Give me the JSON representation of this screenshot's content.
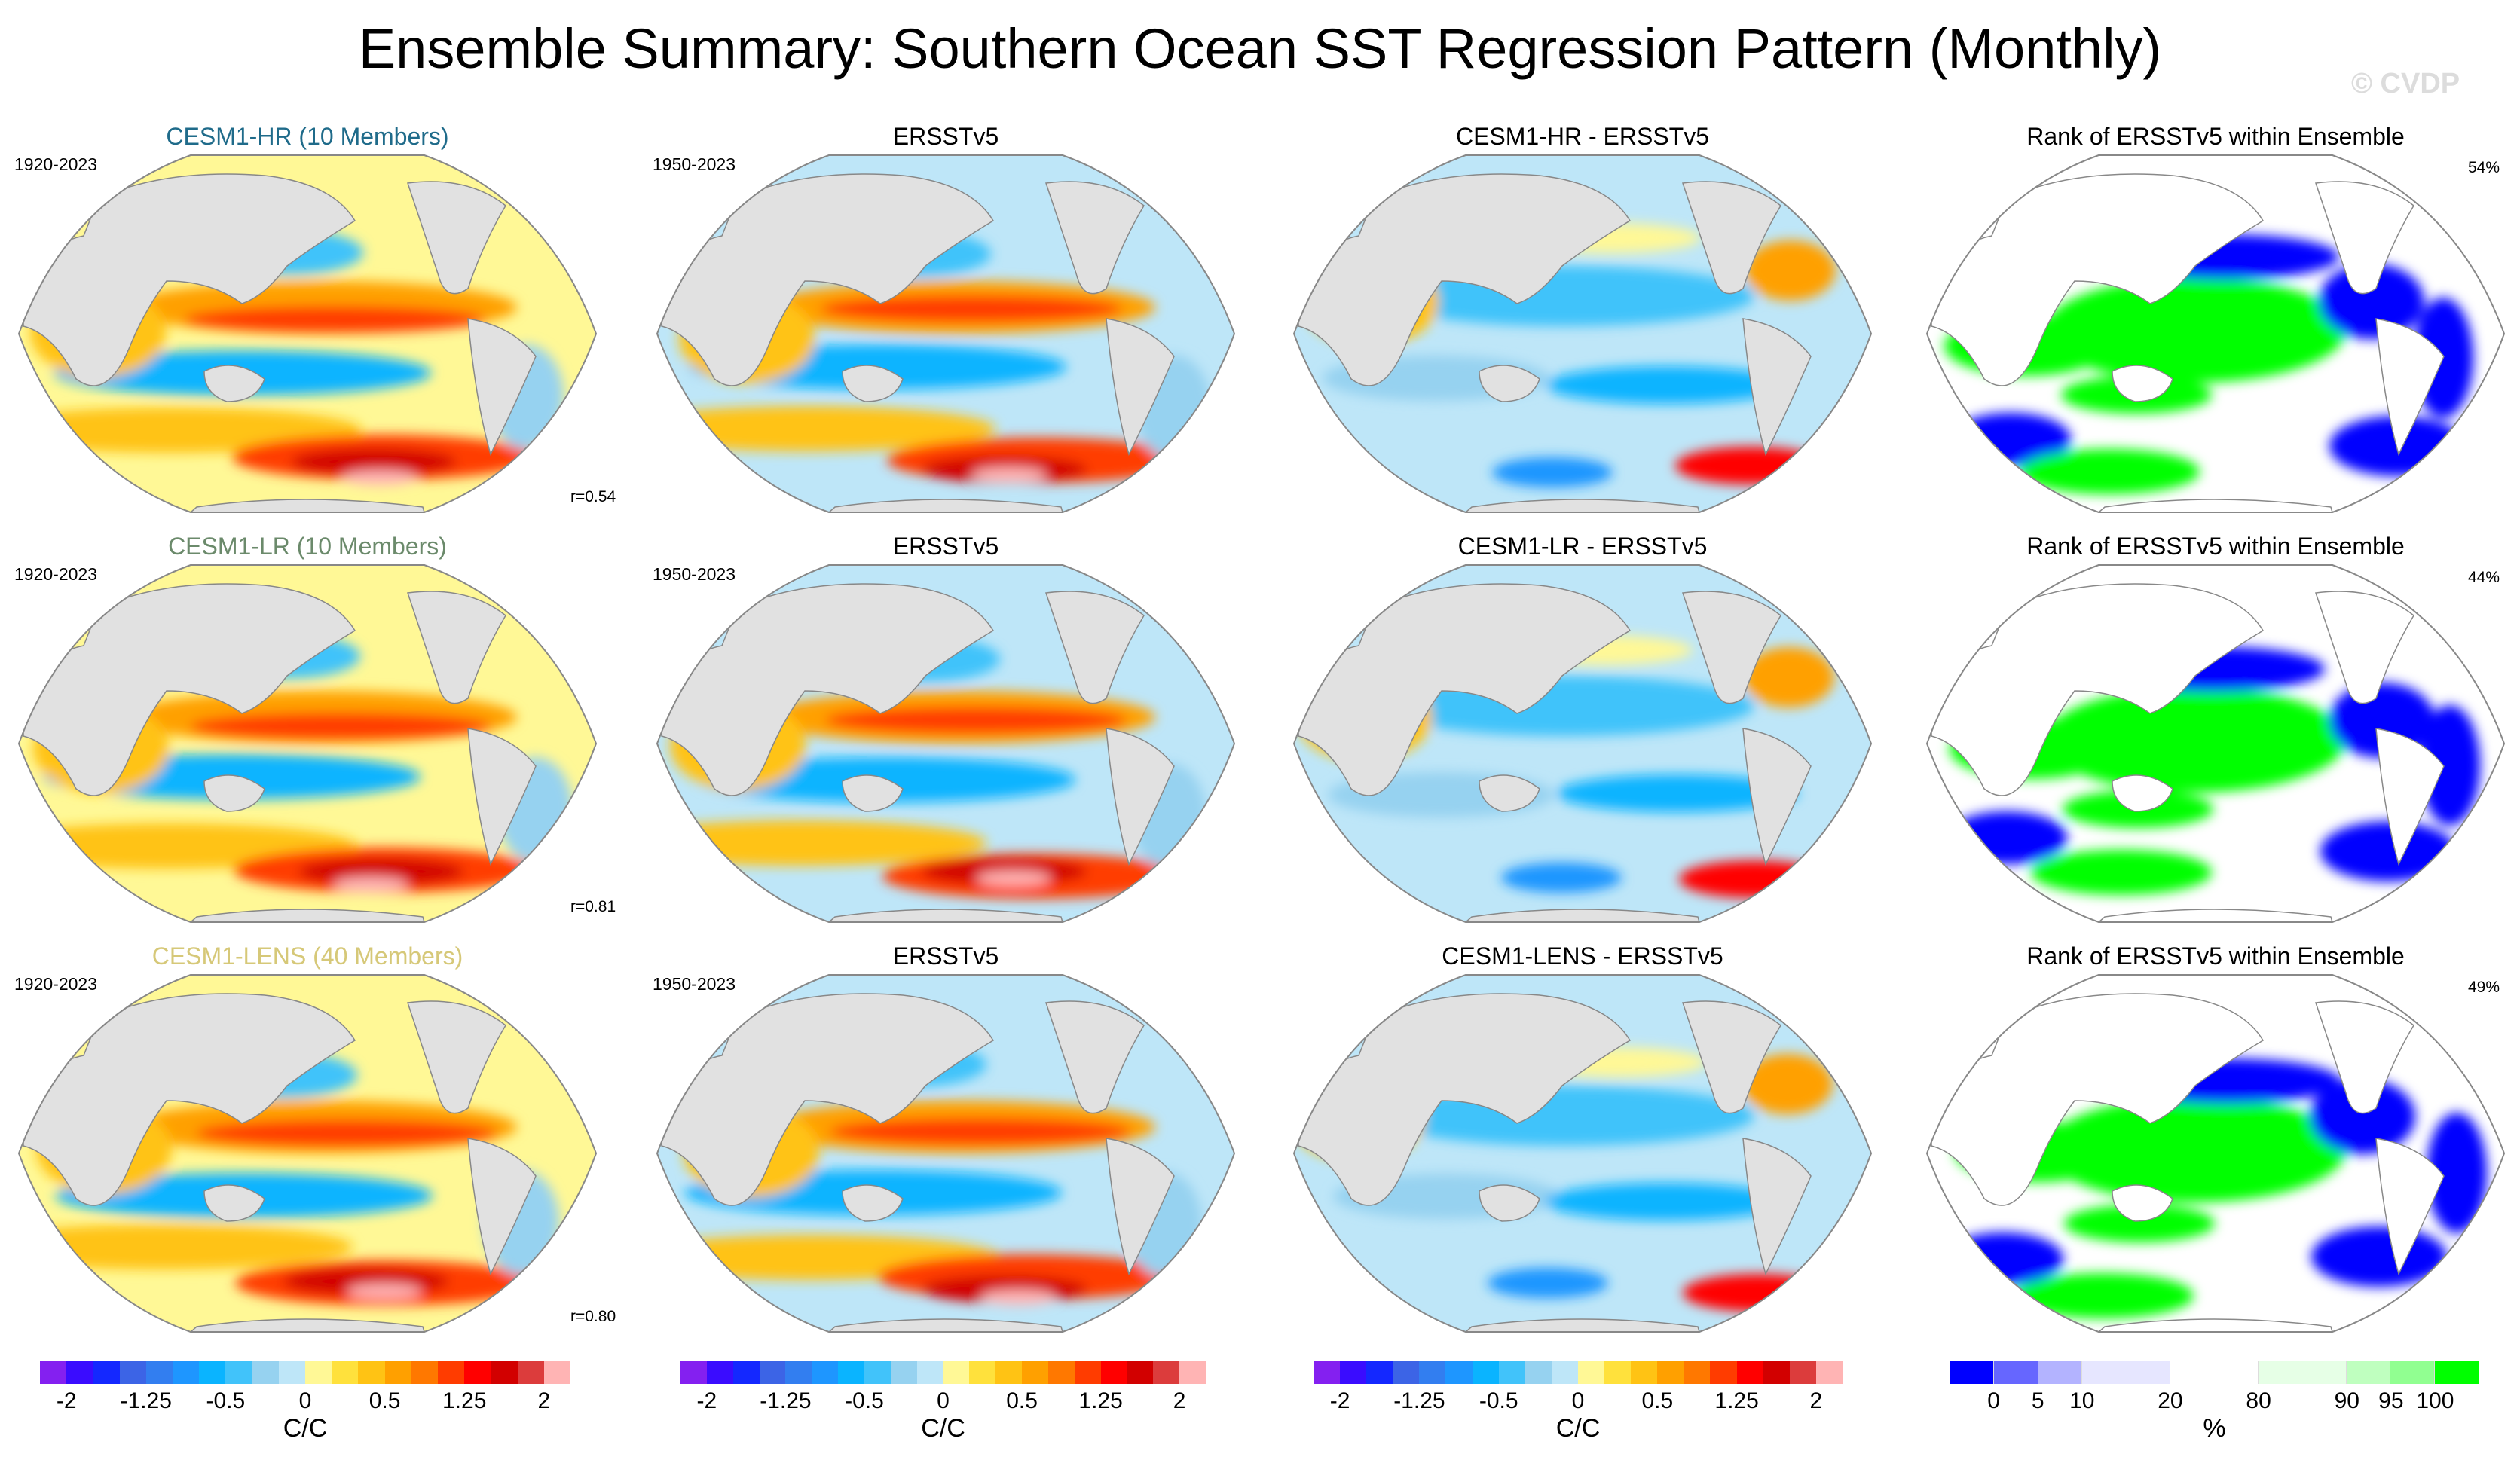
{
  "title": "Ensemble Summary: Southern Ocean SST Regression Pattern (Monthly)",
  "watermark": "© CVDP",
  "chart_data": {
    "type": "heatmap",
    "projection": "robinson",
    "rows": [
      {
        "model": {
          "title": "CESM1-HR (10 Members)",
          "title_color": "#1f6b8a",
          "years": "1920-2023",
          "pattern_correlation": "r=0.54"
        },
        "obs": {
          "title": "ERSSTv5",
          "years": "1950-2023"
        },
        "diff": {
          "title": "CESM1-HR - ERSSTv5"
        },
        "rank": {
          "title": "Rank of ERSSTv5 within Ensemble",
          "percent": "54%"
        }
      },
      {
        "model": {
          "title": "CESM1-LR (10 Members)",
          "title_color": "#6b8a6b",
          "years": "1920-2023",
          "pattern_correlation": "r=0.81"
        },
        "obs": {
          "title": "ERSSTv5",
          "years": "1950-2023"
        },
        "diff": {
          "title": "CESM1-LR - ERSSTv5"
        },
        "rank": {
          "title": "Rank of ERSSTv5 within Ensemble",
          "percent": "44%"
        }
      },
      {
        "model": {
          "title": "CESM1-LENS (40 Members)",
          "title_color": "#d6c878",
          "years": "1920-2023",
          "pattern_correlation": "r=0.80"
        },
        "obs": {
          "title": "ERSSTv5",
          "years": "1950-2023"
        },
        "diff": {
          "title": "CESM1-LENS - ERSSTv5"
        },
        "rank": {
          "title": "Rank of ERSSTv5 within Ensemble",
          "percent": "49%"
        }
      }
    ],
    "sst_colorbar": {
      "unit": "C/C",
      "tick_labels": [
        "-2",
        "-1.25",
        "-0.5",
        "0",
        "0.5",
        "1.25",
        "2"
      ],
      "colors": [
        "#8420f0",
        "#3a0cff",
        "#1428ff",
        "#3c64e6",
        "#327ef0",
        "#1e96ff",
        "#0ab4ff",
        "#41c3fa",
        "#96d2f0",
        "#bee6f8",
        "#fff896",
        "#ffe13c",
        "#ffc314",
        "#ffa000",
        "#ff7800",
        "#ff3c00",
        "#ff0000",
        "#d20000",
        "#dc3c3c",
        "#ffb4b4"
      ]
    },
    "rank_colorbar": {
      "unit": "%",
      "tick_labels": [
        "0",
        "5",
        "10",
        "20",
        "80",
        "90",
        "95",
        "100"
      ],
      "colors": [
        "#0000ff",
        "#6666ff",
        "#b3b3ff",
        "#e6e6ff",
        "#ffffff",
        "#e6ffe6",
        "#bfffbf",
        "#91ff91",
        "#00ff00"
      ]
    },
    "land_color": "#e1e1e1"
  }
}
